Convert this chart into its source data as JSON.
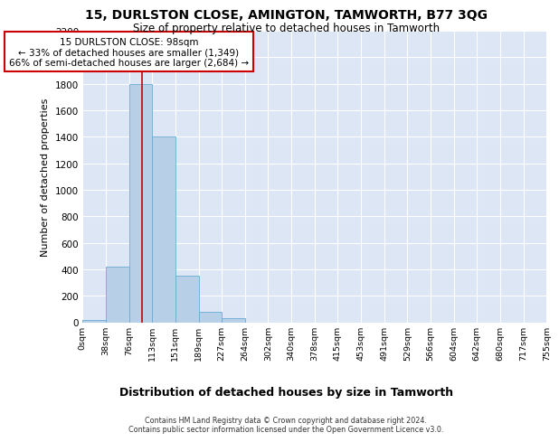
{
  "title_line1": "15, DURLSTON CLOSE, AMINGTON, TAMWORTH, B77 3QG",
  "title_line2": "Size of property relative to detached houses in Tamworth",
  "xlabel": "Distribution of detached houses by size in Tamworth",
  "ylabel": "Number of detached properties",
  "bin_labels": [
    "0sqm",
    "38sqm",
    "76sqm",
    "113sqm",
    "151sqm",
    "189sqm",
    "227sqm",
    "264sqm",
    "302sqm",
    "340sqm",
    "378sqm",
    "415sqm",
    "453sqm",
    "491sqm",
    "529sqm",
    "566sqm",
    "604sqm",
    "642sqm",
    "680sqm",
    "717sqm",
    "755sqm"
  ],
  "bar_values": [
    15,
    420,
    1800,
    1400,
    350,
    80,
    30,
    0,
    0,
    0,
    0,
    0,
    0,
    0,
    0,
    0,
    0,
    0,
    0,
    0
  ],
  "bar_color": "#b8cfe8",
  "bar_edge_color": "#6aaad4",
  "background_color": "#dce6f5",
  "grid_color": "#ffffff",
  "annotation_text": "15 DURLSTON CLOSE: 98sqm\n← 33% of detached houses are smaller (1,349)\n66% of semi-detached houses are larger (2,684) →",
  "annotation_box_color": "#ffffff",
  "annotation_box_edge_color": "#cc0000",
  "vline_x": 98,
  "vline_color": "#cc0000",
  "ylim": [
    0,
    2200
  ],
  "yticks": [
    0,
    200,
    400,
    600,
    800,
    1000,
    1200,
    1400,
    1600,
    1800,
    2000,
    2200
  ],
  "footer_line1": "Contains HM Land Registry data © Crown copyright and database right 2024.",
  "footer_line2": "Contains public sector information licensed under the Open Government Licence v3.0.",
  "bin_width": 38
}
